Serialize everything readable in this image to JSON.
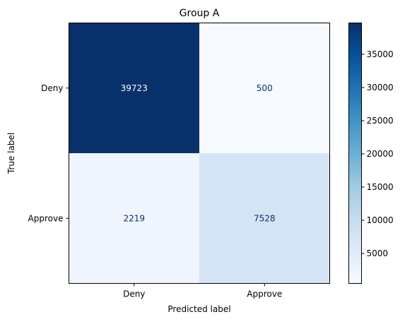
{
  "chart_data": {
    "type": "heatmap",
    "title": "Group A",
    "xlabel": "Predicted label",
    "ylabel": "True label",
    "x_categories": [
      "Deny",
      "Approve"
    ],
    "y_categories": [
      "Deny",
      "Approve"
    ],
    "values": [
      [
        39723,
        500
      ],
      [
        2219,
        7528
      ]
    ],
    "colormap": "Blues",
    "colorbar": {
      "min": 500,
      "max": 39723,
      "ticks": [
        5000,
        10000,
        15000,
        20000,
        25000,
        30000,
        35000
      ]
    }
  }
}
